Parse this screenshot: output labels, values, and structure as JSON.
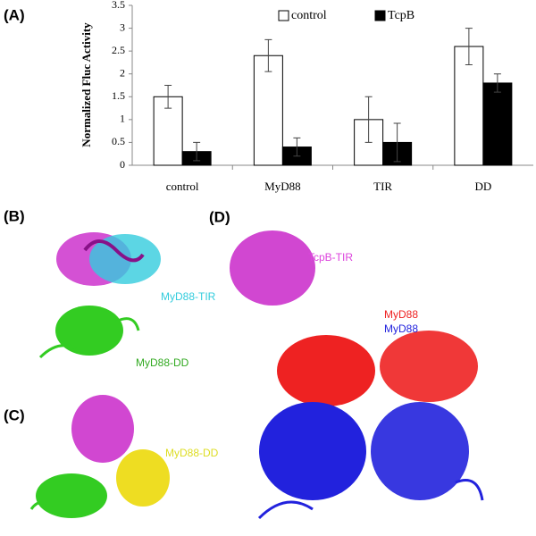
{
  "chart_data": {
    "type": "bar",
    "panel": "(A)",
    "ylabel": "Normalized Fluc Activity",
    "categories": [
      "control",
      "MyD88",
      "TIR",
      "DD"
    ],
    "series": [
      {
        "name": "control",
        "color": "#ffffff",
        "values": [
          1.5,
          2.4,
          1.0,
          2.6
        ],
        "errors": [
          0.25,
          0.35,
          0.5,
          0.4
        ]
      },
      {
        "name": "TcpB",
        "color": "#000000",
        "values": [
          0.3,
          0.4,
          0.5,
          1.8
        ],
        "errors": [
          0.2,
          0.2,
          0.42,
          0.2
        ]
      }
    ],
    "ylim": [
      0,
      3.5
    ],
    "yticks": [
      0,
      0.5,
      1,
      1.5,
      2,
      2.5,
      3,
      3.5
    ],
    "legend": "top"
  },
  "panels": {
    "b": {
      "label": "(B)",
      "tir": "MyD88-TIR",
      "dd": "MyD88-DD"
    },
    "c": {
      "label": "(C)",
      "dd": "MyD88-DD"
    },
    "d": {
      "label": "(D)",
      "tcpb": "TcpB-TIR",
      "myd88_red": "MyD88",
      "myd88_blue": "MyD88"
    }
  }
}
